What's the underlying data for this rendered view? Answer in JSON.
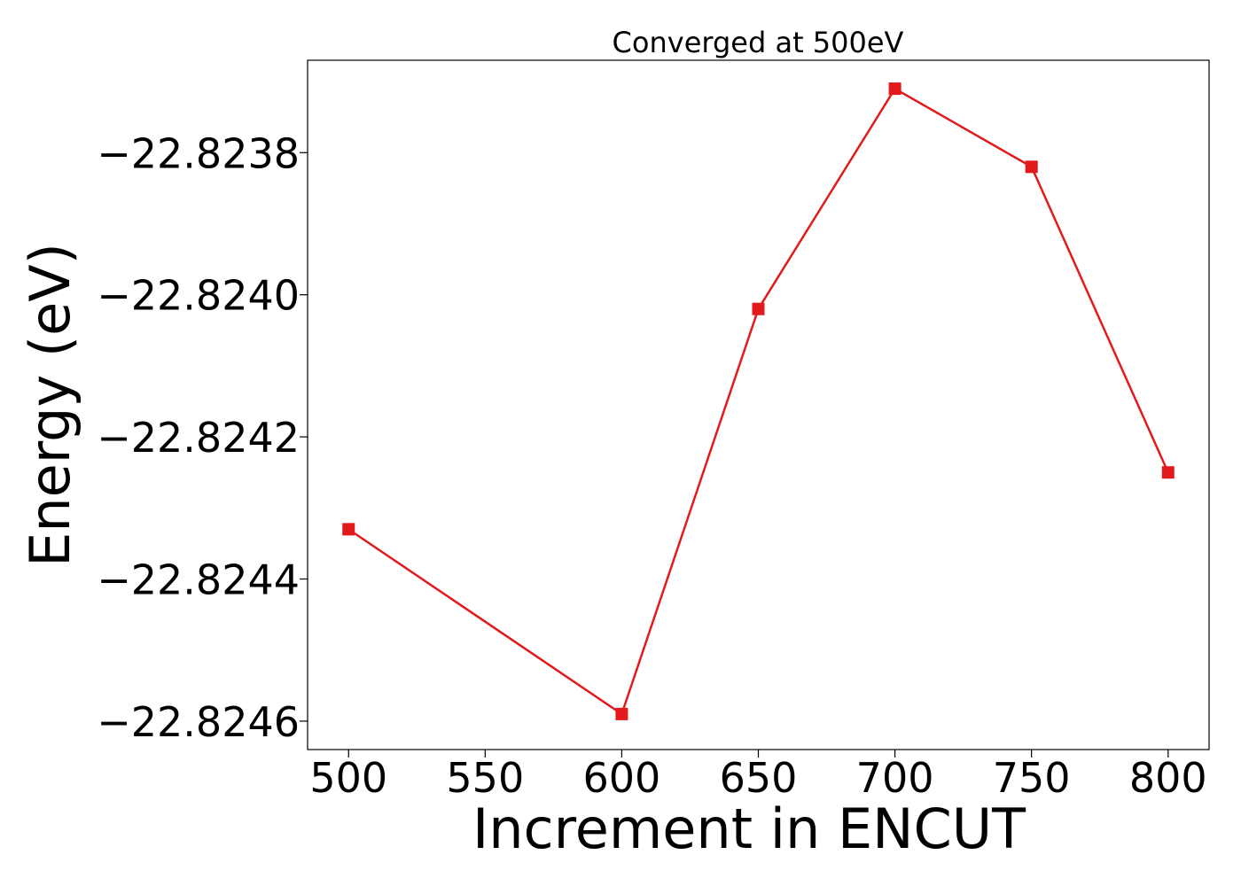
{
  "chart_data": {
    "type": "line",
    "title": "Converged at 500eV",
    "xlabel": "Increment in ENCUT",
    "ylabel": "Energy (eV)",
    "x_ticks": [
      500,
      550,
      600,
      650,
      700,
      750,
      800
    ],
    "x_tick_labels": [
      "500",
      "550",
      "600",
      "650",
      "700",
      "750",
      "800"
    ],
    "y_ticks": [
      -22.8238,
      -22.824,
      -22.8242,
      -22.8244,
      -22.8246
    ],
    "y_tick_labels": [
      "−22.8238",
      "−22.8240",
      "−22.8242",
      "−22.8244",
      "−22.8246"
    ],
    "xlim": [
      485,
      815
    ],
    "ylim": [
      -22.82464,
      -22.82367
    ],
    "grid": false,
    "legend": "none",
    "series": [
      {
        "marker": "square",
        "color": "#e31a1c",
        "x": [
          500,
          600,
          650,
          700,
          750,
          800
        ],
        "y": [
          -22.82433,
          -22.82459,
          -22.82402,
          -22.82371,
          -22.82382,
          -22.82425
        ]
      }
    ]
  }
}
